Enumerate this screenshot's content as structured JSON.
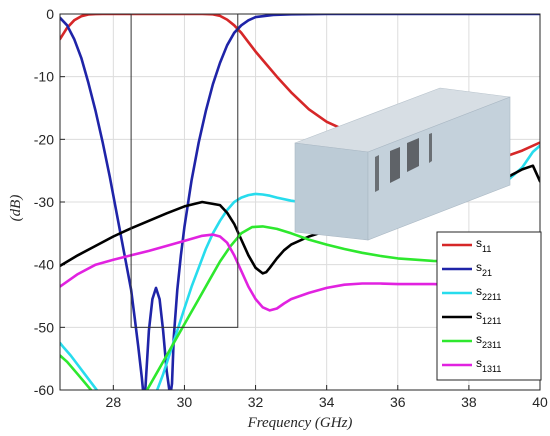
{
  "chart_data": {
    "type": "line",
    "title": "",
    "xlabel": "Frequency (GHz)",
    "ylabel": "(dB)",
    "xlim": [
      26.5,
      40
    ],
    "ylim": [
      -60,
      0
    ],
    "xticks": [
      28,
      30,
      32,
      34,
      36,
      38,
      40
    ],
    "yticks": [
      0,
      -10,
      -20,
      -30,
      -40,
      -50,
      -60
    ],
    "grid": true,
    "legend_position": "bottom-right",
    "highlight_box": {
      "x": [
        28.5,
        31.5
      ],
      "y": [
        -50,
        0
      ]
    },
    "inset": "3D waveguide filter model with three septa",
    "series": [
      {
        "name": "s",
        "sub": "11",
        "color": "#d62728",
        "x": [
          26.5,
          26.7,
          26.9,
          27.1,
          27.3,
          27.5,
          27.7,
          28.0,
          28.5,
          29.0,
          29.5,
          30.0,
          30.5,
          30.8,
          31.0,
          31.2,
          31.4,
          31.6,
          31.8,
          32.0,
          32.3,
          32.6,
          33.0,
          33.5,
          34.0,
          34.5,
          35.0,
          35.5,
          36.0,
          36.5,
          37.0,
          37.5,
          38.0,
          38.5,
          39.0,
          39.5,
          40.0
        ],
        "y": [
          -4,
          -2.2,
          -1.0,
          -0.35,
          -0.08,
          -0.01,
          0,
          0,
          0,
          0,
          0,
          0,
          0,
          -0.05,
          -0.3,
          -0.9,
          -1.8,
          -3.0,
          -4.5,
          -6.0,
          -8.0,
          -10.0,
          -12.5,
          -15.2,
          -17.2,
          -18.5,
          -19.3,
          -19.7,
          -19.7,
          -19.6,
          -19.8,
          -20.4,
          -21.8,
          -23.0,
          -22.8,
          -21.8,
          -20.5
        ]
      },
      {
        "name": "s",
        "sub": "21",
        "color": "#1f24a8",
        "x": [
          26.5,
          26.7,
          26.9,
          27.1,
          27.3,
          27.5,
          27.7,
          27.9,
          28.1,
          28.3,
          28.5,
          28.6,
          28.7,
          28.8,
          28.85,
          28.9,
          29.0,
          29.1,
          29.2,
          29.3,
          29.4,
          29.5,
          29.6,
          29.65,
          29.7,
          29.8,
          29.9,
          30.0,
          30.2,
          30.4,
          30.6,
          30.8,
          31.0,
          31.2,
          31.4,
          31.6,
          31.8,
          32.0,
          32.5,
          33.0,
          34.0,
          35.0,
          36.0,
          38.0,
          40.0
        ],
        "y": [
          -0.6,
          -1.8,
          -4.0,
          -7.0,
          -11.0,
          -15.5,
          -20.5,
          -26.0,
          -32.0,
          -38.0,
          -44.0,
          -48.5,
          -53.0,
          -58.0,
          -61,
          -60,
          -50.5,
          -45.5,
          -43.7,
          -45.5,
          -50.5,
          -57.0,
          -61,
          -59,
          -51.5,
          -44.0,
          -38.5,
          -34.0,
          -26.5,
          -20.5,
          -15.5,
          -11.2,
          -7.8,
          -5.0,
          -3.0,
          -1.8,
          -1.0,
          -0.5,
          -0.15,
          -0.05,
          0,
          0,
          0,
          0,
          0
        ]
      },
      {
        "name": "s",
        "sub": "2211",
        "color": "#27dced",
        "x": [
          26.5,
          26.6,
          26.8,
          27.0,
          27.2,
          27.4,
          27.6,
          27.8,
          28.0,
          28.2,
          28.4,
          28.6,
          28.8,
          29.0,
          29.2,
          29.4,
          29.6,
          29.8,
          30.0,
          30.2,
          30.4,
          30.6,
          30.8,
          31.0,
          31.2,
          31.4,
          31.6,
          31.8,
          32.0,
          32.2,
          32.4,
          32.6,
          33.0,
          33.5,
          34.0,
          34.5,
          35.0,
          35.5,
          36.0,
          37.0,
          38.0,
          39.0,
          39.5,
          39.8,
          40.0
        ],
        "y": [
          -52.5,
          -53.2,
          -54.5,
          -56.0,
          -57.5,
          -59.0,
          -60.5,
          -62,
          -63,
          -64,
          -64,
          -64,
          -63,
          -62,
          -60.5,
          -57.5,
          -54.0,
          -50.5,
          -47.0,
          -43.5,
          -40.5,
          -37.5,
          -35.0,
          -33.0,
          -31.3,
          -30.0,
          -29.3,
          -28.9,
          -28.7,
          -28.8,
          -29.0,
          -29.3,
          -29.8,
          -30.2,
          -30.5,
          -30.8,
          -31.0,
          -31.0,
          -30.9,
          -30.3,
          -29.3,
          -27.0,
          -24.5,
          -22.0,
          -21.0
        ]
      },
      {
        "name": "s",
        "sub": "1211",
        "color": "#000000",
        "x": [
          26.5,
          27.0,
          27.5,
          28.0,
          28.5,
          29.0,
          29.5,
          30.0,
          30.5,
          31.0,
          31.2,
          31.4,
          31.6,
          31.8,
          32.0,
          32.2,
          32.3,
          32.4,
          32.6,
          32.8,
          33.0,
          33.5,
          34.0,
          34.5,
          35.0,
          35.5,
          36.0,
          36.5,
          37.0,
          37.5,
          38.0,
          38.5,
          39.0,
          39.5,
          39.8,
          40.0
        ],
        "y": [
          -40.2,
          -38.5,
          -37.0,
          -35.5,
          -34.2,
          -33.0,
          -31.8,
          -30.7,
          -30.0,
          -30.5,
          -31.7,
          -33.5,
          -36.0,
          -38.5,
          -40.5,
          -41.4,
          -41.2,
          -40.5,
          -39.0,
          -37.7,
          -36.8,
          -35.5,
          -34.6,
          -34.0,
          -33.5,
          -33.0,
          -32.5,
          -32.0,
          -31.2,
          -30.3,
          -29.2,
          -27.8,
          -26.3,
          -24.8,
          -24.2,
          -26.7
        ]
      },
      {
        "name": "s",
        "sub": "2311",
        "color": "#2ee82e",
        "x": [
          26.5,
          26.7,
          27.0,
          27.3,
          27.6,
          28.0,
          28.3,
          28.6,
          28.9,
          29.2,
          29.5,
          29.8,
          30.1,
          30.4,
          30.7,
          31.0,
          31.3,
          31.6,
          31.9,
          32.2,
          32.6,
          33.0,
          33.5,
          34.0,
          34.5,
          35.0,
          35.5,
          36.0,
          36.5,
          37.0,
          37.5,
          38.0,
          38.5,
          39.0,
          39.5,
          39.8,
          40.0
        ],
        "y": [
          -54.5,
          -55.5,
          -57.5,
          -59.5,
          -61.5,
          -63,
          -63,
          -62,
          -60.5,
          -57.5,
          -54.5,
          -51.5,
          -48.5,
          -45.5,
          -42.5,
          -39.5,
          -37.0,
          -35.0,
          -34.0,
          -33.9,
          -34.3,
          -35.0,
          -36.0,
          -36.8,
          -37.5,
          -38.1,
          -38.6,
          -39.0,
          -39.2,
          -39.4,
          -39.5,
          -39.6,
          -40.0,
          -41.0,
          -43.0,
          -45.0,
          -46.0
        ]
      },
      {
        "name": "s",
        "sub": "1311",
        "color": "#e122e0",
        "x": [
          26.5,
          27.0,
          27.5,
          28.0,
          28.5,
          29.0,
          29.5,
          30.0,
          30.5,
          30.8,
          31.0,
          31.2,
          31.4,
          31.6,
          31.8,
          32.0,
          32.2,
          32.4,
          32.6,
          32.8,
          33.0,
          33.5,
          34.0,
          34.5,
          35.0,
          35.5,
          36.0,
          36.5,
          37.0,
          37.5,
          38.0,
          38.5,
          39.0,
          39.5,
          39.8,
          40.0
        ],
        "y": [
          -43.5,
          -41.5,
          -40.0,
          -39.2,
          -38.5,
          -37.8,
          -37.0,
          -36.2,
          -35.4,
          -35.2,
          -35.5,
          -36.5,
          -38.5,
          -41.0,
          -43.5,
          -45.5,
          -46.8,
          -47.3,
          -47.0,
          -46.2,
          -45.5,
          -44.5,
          -43.7,
          -43.2,
          -43.0,
          -43.0,
          -43.1,
          -43.1,
          -43.1,
          -43.2,
          -43.3,
          -43.5,
          -44.0,
          -45.5,
          -49.0,
          -50.5
        ]
      }
    ]
  }
}
